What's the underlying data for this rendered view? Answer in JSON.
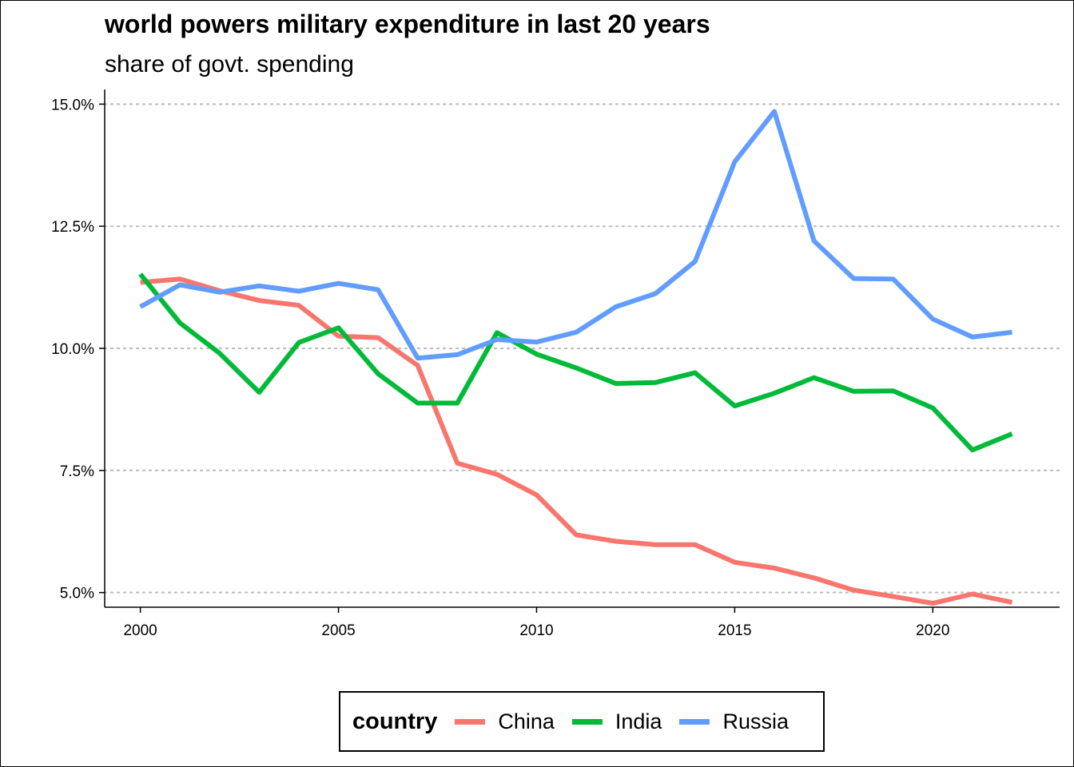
{
  "chart_data": {
    "type": "line",
    "title": "world powers military expenditure in last 20 years",
    "subtitle": "share of govt. spending",
    "xlabel": "",
    "ylabel": "",
    "xlim": [
      1999.1,
      2023.2
    ],
    "ylim": [
      4.7,
      15.3
    ],
    "x_ticks": [
      2000,
      2005,
      2010,
      2015,
      2020
    ],
    "x_tick_labels": [
      "2000",
      "2005",
      "2010",
      "2015",
      "2020"
    ],
    "y_ticks": [
      5.0,
      7.5,
      10.0,
      12.5,
      15.0
    ],
    "y_tick_labels": [
      "5.0%",
      "7.5%",
      "10.0%",
      "12.5%",
      "15.0%"
    ],
    "grid": "horizontal dotted",
    "legend": {
      "title": "country",
      "position": "bottom"
    },
    "x": [
      2000,
      2001,
      2002,
      2003,
      2004,
      2005,
      2006,
      2007,
      2008,
      2009,
      2010,
      2011,
      2012,
      2013,
      2014,
      2015,
      2016,
      2017,
      2018,
      2019,
      2020,
      2021,
      2022
    ],
    "series": [
      {
        "name": "China",
        "color": "#F8766D",
        "values": [
          11.35,
          11.42,
          11.18,
          10.98,
          10.88,
          10.25,
          10.22,
          9.65,
          7.65,
          7.42,
          7.0,
          6.18,
          6.05,
          5.98,
          5.98,
          5.62,
          5.5,
          5.3,
          5.05,
          4.92,
          4.78,
          4.97,
          4.8
        ]
      },
      {
        "name": "India",
        "color": "#00BA38",
        "values": [
          11.52,
          10.52,
          9.9,
          9.1,
          10.12,
          10.42,
          9.48,
          8.88,
          8.88,
          10.32,
          9.88,
          9.6,
          9.28,
          9.3,
          9.5,
          8.82,
          9.08,
          9.4,
          9.12,
          9.13,
          8.78,
          7.92,
          8.25
        ]
      },
      {
        "name": "Russia",
        "color": "#619CFF",
        "values": [
          10.85,
          11.3,
          11.15,
          11.28,
          11.17,
          11.33,
          11.2,
          9.8,
          9.87,
          10.18,
          10.13,
          10.33,
          10.85,
          11.12,
          11.78,
          13.82,
          14.85,
          12.2,
          11.43,
          11.42,
          10.6,
          10.23,
          10.33
        ]
      }
    ]
  }
}
